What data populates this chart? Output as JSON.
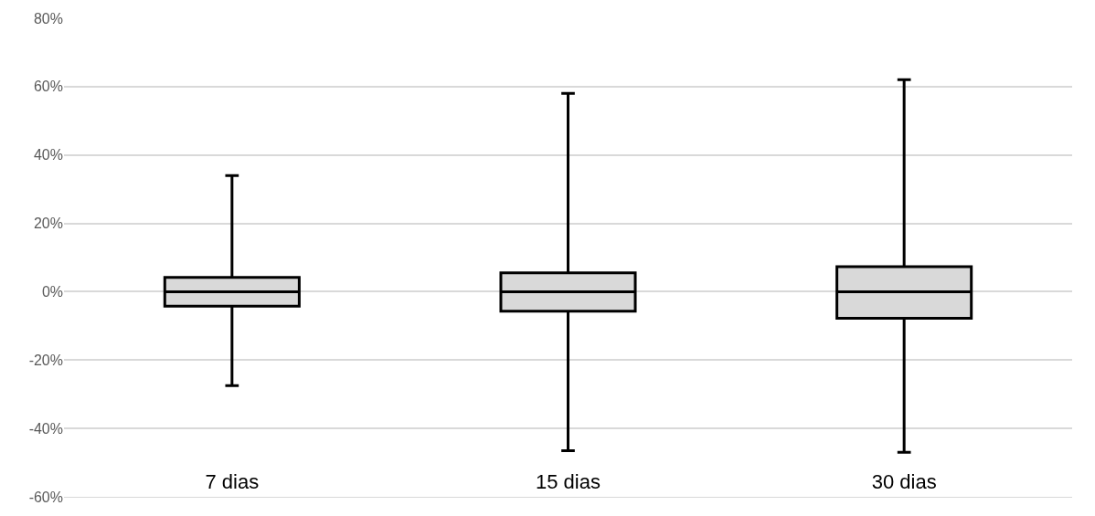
{
  "chart_data": {
    "type": "box",
    "categories": [
      "7 dias",
      "15 dias",
      "30 dias"
    ],
    "boxes": [
      {
        "low": -27.5,
        "q1": -4.2,
        "median": 0,
        "q3": 4.2,
        "high": 34
      },
      {
        "low": -46.5,
        "q1": -5.7,
        "median": 0,
        "q3": 5.5,
        "high": 58
      },
      {
        "low": -47,
        "q1": -7.8,
        "median": 0,
        "q3": 7.3,
        "high": 62
      }
    ],
    "color": "#d9d9d9",
    "ylim": [
      -60,
      80
    ],
    "yticks": [
      {
        "value": -60,
        "label": "-60%"
      },
      {
        "value": -40,
        "label": "-40%"
      },
      {
        "value": -20,
        "label": "-20%"
      },
      {
        "value": 0,
        "label": "0%"
      },
      {
        "value": 20,
        "label": "20%"
      },
      {
        "value": 40,
        "label": "40%"
      },
      {
        "value": 60,
        "label": "60%"
      },
      {
        "value": 80,
        "label": "80%"
      }
    ],
    "grid": "y"
  }
}
